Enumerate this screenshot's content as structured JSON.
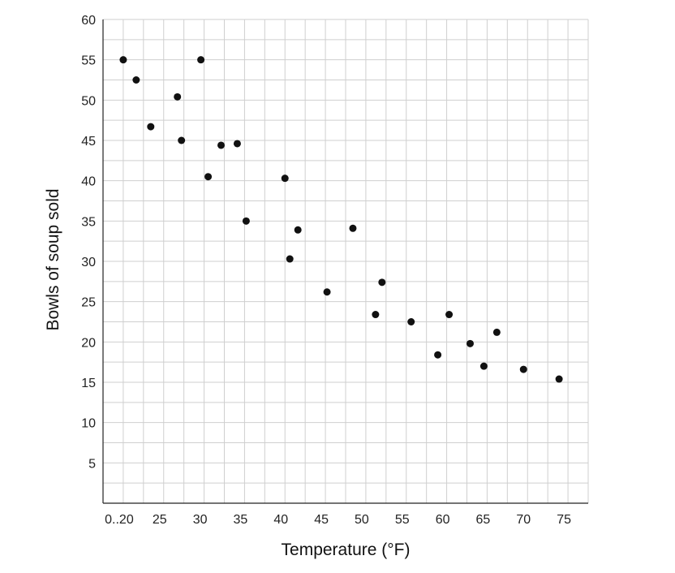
{
  "chart_data": {
    "type": "scatter",
    "title": "",
    "xlabel": "Temperature (°F)",
    "ylabel": "Bowls of soup sold",
    "xlim": [
      18,
      78
    ],
    "ylim": [
      0,
      60
    ],
    "grid": true,
    "x_ticks": [
      {
        "value": 20,
        "label": "0..20"
      },
      {
        "value": 25,
        "label": "25"
      },
      {
        "value": 30,
        "label": "30"
      },
      {
        "value": 35,
        "label": "35"
      },
      {
        "value": 40,
        "label": "40"
      },
      {
        "value": 45,
        "label": "45"
      },
      {
        "value": 50,
        "label": "50"
      },
      {
        "value": 55,
        "label": "55"
      },
      {
        "value": 60,
        "label": "60"
      },
      {
        "value": 65,
        "label": "65"
      },
      {
        "value": 70,
        "label": "70"
      },
      {
        "value": 75,
        "label": "75"
      }
    ],
    "y_ticks": [
      5,
      10,
      15,
      20,
      25,
      30,
      35,
      40,
      45,
      50,
      55,
      60
    ],
    "points": [
      {
        "x": 20.5,
        "y": 55
      },
      {
        "x": 22.1,
        "y": 52.5
      },
      {
        "x": 23.9,
        "y": 46.7
      },
      {
        "x": 27.2,
        "y": 50.4
      },
      {
        "x": 27.7,
        "y": 45
      },
      {
        "x": 30.1,
        "y": 55
      },
      {
        "x": 31.0,
        "y": 40.5
      },
      {
        "x": 32.6,
        "y": 44.4
      },
      {
        "x": 34.6,
        "y": 44.6
      },
      {
        "x": 35.7,
        "y": 35
      },
      {
        "x": 40.5,
        "y": 40.3
      },
      {
        "x": 41.1,
        "y": 30.3
      },
      {
        "x": 42.1,
        "y": 33.9
      },
      {
        "x": 45.7,
        "y": 26.2
      },
      {
        "x": 48.9,
        "y": 34.1
      },
      {
        "x": 51.7,
        "y": 23.4
      },
      {
        "x": 52.5,
        "y": 27.4
      },
      {
        "x": 56.1,
        "y": 22.5
      },
      {
        "x": 59.4,
        "y": 18.4
      },
      {
        "x": 60.8,
        "y": 23.4
      },
      {
        "x": 63.4,
        "y": 19.8
      },
      {
        "x": 65.1,
        "y": 17
      },
      {
        "x": 66.7,
        "y": 21.2
      },
      {
        "x": 70.0,
        "y": 16.6
      },
      {
        "x": 74.4,
        "y": 15.4
      }
    ]
  }
}
